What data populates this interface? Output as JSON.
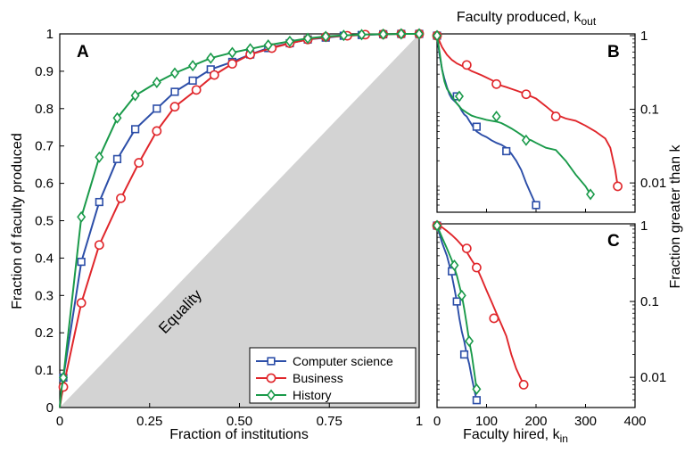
{
  "colors": {
    "Computer science": "#2c4ea8",
    "Business": "#e0262b",
    "History": "#1a9a4a",
    "equality_fill": "#d3d3d3"
  },
  "chart_data": [
    {
      "panel": "A",
      "type": "line",
      "xlabel": "Fraction of institutions",
      "ylabel": "Fraction of faculty produced",
      "xlim": [
        0,
        1
      ],
      "ylim": [
        0,
        1
      ],
      "xticks": [
        "0",
        "0.25",
        "0.50",
        "0.75",
        "1"
      ],
      "yticks": [
        "0",
        "0.1",
        "0.2",
        "0.3",
        "0.4",
        "0.5",
        "0.6",
        "0.7",
        "0.8",
        "0.9",
        "1"
      ],
      "annotation": "Equality",
      "legend_position": "bottom-right",
      "series": [
        {
          "name": "Computer science",
          "x": [
            0,
            0.005,
            0.01,
            0.06,
            0.11,
            0.16,
            0.21,
            0.27,
            0.32,
            0.37,
            0.42,
            0.48,
            0.53,
            0.58,
            0.64,
            0.69,
            0.74,
            0.79,
            0.84,
            0.9,
            0.95,
            1.0
          ],
          "y": [
            0,
            0.04,
            0.08,
            0.39,
            0.55,
            0.665,
            0.745,
            0.8,
            0.845,
            0.875,
            0.905,
            0.925,
            0.945,
            0.962,
            0.975,
            0.985,
            0.99,
            0.995,
            0.997,
            0.999,
            1.0,
            1.0
          ]
        },
        {
          "name": "Business",
          "x": [
            0,
            0.005,
            0.01,
            0.06,
            0.11,
            0.17,
            0.22,
            0.27,
            0.32,
            0.38,
            0.43,
            0.48,
            0.53,
            0.59,
            0.64,
            0.69,
            0.74,
            0.8,
            0.85,
            0.9,
            0.95,
            1.0
          ],
          "y": [
            0,
            0.03,
            0.055,
            0.28,
            0.435,
            0.56,
            0.655,
            0.74,
            0.805,
            0.85,
            0.89,
            0.92,
            0.945,
            0.962,
            0.975,
            0.985,
            0.992,
            0.995,
            0.998,
            0.999,
            1.0,
            1.0
          ]
        },
        {
          "name": "History",
          "x": [
            0,
            0.005,
            0.01,
            0.06,
            0.11,
            0.16,
            0.21,
            0.27,
            0.32,
            0.37,
            0.42,
            0.48,
            0.53,
            0.58,
            0.64,
            0.69,
            0.74,
            0.79,
            0.84,
            0.9,
            0.95,
            1.0
          ],
          "y": [
            0,
            0.05,
            0.08,
            0.51,
            0.67,
            0.775,
            0.835,
            0.87,
            0.895,
            0.915,
            0.935,
            0.95,
            0.96,
            0.97,
            0.98,
            0.988,
            0.993,
            0.996,
            0.998,
            0.999,
            1.0,
            1.0
          ]
        }
      ]
    },
    {
      "panel": "B",
      "type": "line",
      "xlabel_top": "Faculty produced, k",
      "xlabel_top_sub": "out",
      "ylabel_right": "Fraction greater than k",
      "xlim": [
        0,
        400
      ],
      "y_scale": "log",
      "ylim": [
        0.004,
        1
      ],
      "yticks": [
        "1",
        "0.1",
        "0.01"
      ],
      "series": [
        {
          "name": "Computer science",
          "x": [
            0,
            5,
            10,
            15,
            20,
            25,
            30,
            35,
            40,
            45,
            50,
            55,
            60,
            65,
            70,
            75,
            80,
            90,
            100,
            110,
            120,
            130,
            140,
            150,
            160,
            170,
            180,
            190,
            200
          ],
          "y": [
            1,
            0.55,
            0.35,
            0.26,
            0.2,
            0.16,
            0.14,
            0.13,
            0.12,
            0.11,
            0.095,
            0.085,
            0.08,
            0.07,
            0.062,
            0.055,
            0.05,
            0.045,
            0.042,
            0.038,
            0.035,
            0.033,
            0.03,
            0.025,
            0.02,
            0.015,
            0.01,
            0.007,
            0.005
          ],
          "markers_x": [
            0,
            40,
            80,
            140,
            200
          ],
          "markers_y": [
            1,
            0.15,
            0.058,
            0.027,
            0.005
          ]
        },
        {
          "name": "Business",
          "x": [
            0,
            10,
            20,
            30,
            40,
            50,
            60,
            70,
            80,
            90,
            100,
            110,
            120,
            130,
            140,
            150,
            160,
            170,
            180,
            200,
            220,
            240,
            260,
            280,
            300,
            320,
            340,
            350,
            360,
            365
          ],
          "y": [
            1,
            0.7,
            0.55,
            0.47,
            0.42,
            0.39,
            0.36,
            0.33,
            0.31,
            0.29,
            0.27,
            0.25,
            0.23,
            0.21,
            0.2,
            0.19,
            0.18,
            0.17,
            0.16,
            0.14,
            0.11,
            0.085,
            0.075,
            0.07,
            0.06,
            0.05,
            0.04,
            0.03,
            0.015,
            0.009
          ],
          "markers_x": [
            0,
            60,
            120,
            180,
            240,
            365
          ],
          "markers_y": [
            1,
            0.4,
            0.22,
            0.16,
            0.08,
            0.009
          ]
        },
        {
          "name": "History",
          "x": [
            0,
            5,
            10,
            15,
            20,
            25,
            30,
            40,
            50,
            60,
            70,
            80,
            90,
            100,
            110,
            120,
            130,
            140,
            150,
            160,
            170,
            180,
            190,
            200,
            220,
            240,
            260,
            280,
            300,
            310
          ],
          "y": [
            1,
            0.6,
            0.35,
            0.24,
            0.19,
            0.17,
            0.15,
            0.12,
            0.1,
            0.09,
            0.082,
            0.078,
            0.075,
            0.072,
            0.07,
            0.068,
            0.065,
            0.06,
            0.055,
            0.05,
            0.045,
            0.04,
            0.038,
            0.035,
            0.03,
            0.028,
            0.02,
            0.013,
            0.009,
            0.007
          ],
          "markers_x": [
            0,
            45,
            120,
            180,
            310
          ],
          "markers_y": [
            1,
            0.15,
            0.08,
            0.038,
            0.007
          ]
        }
      ]
    },
    {
      "panel": "C",
      "type": "line",
      "xlabel": "Faculty hired, k",
      "xlabel_sub": "in",
      "xlim": [
        0,
        400
      ],
      "xticks": [
        "0",
        "100",
        "200",
        "300",
        "400"
      ],
      "y_scale": "log",
      "ylim": [
        0.004,
        1
      ],
      "yticks": [
        "1",
        "0.1",
        "0.01"
      ],
      "series": [
        {
          "name": "Computer science",
          "x": [
            0,
            10,
            20,
            25,
            30,
            35,
            40,
            45,
            50,
            55,
            60,
            65,
            70,
            75,
            80
          ],
          "y": [
            1,
            0.6,
            0.4,
            0.3,
            0.22,
            0.15,
            0.1,
            0.06,
            0.04,
            0.03,
            0.02,
            0.015,
            0.01,
            0.007,
            0.005
          ],
          "markers_x": [
            0,
            30,
            40,
            55,
            80
          ],
          "markers_y": [
            1,
            0.25,
            0.1,
            0.02,
            0.005
          ]
        },
        {
          "name": "Business",
          "x": [
            0,
            10,
            20,
            30,
            40,
            50,
            60,
            70,
            80,
            90,
            100,
            110,
            120,
            130,
            140,
            150,
            160,
            175
          ],
          "y": [
            1,
            0.95,
            0.85,
            0.75,
            0.65,
            0.55,
            0.45,
            0.35,
            0.28,
            0.2,
            0.14,
            0.1,
            0.07,
            0.05,
            0.035,
            0.02,
            0.013,
            0.008
          ],
          "markers_x": [
            0,
            60,
            80,
            115,
            175
          ],
          "markers_y": [
            1,
            0.5,
            0.28,
            0.06,
            0.008
          ]
        },
        {
          "name": "History",
          "x": [
            0,
            10,
            20,
            30,
            40,
            50,
            55,
            60,
            65,
            70,
            75,
            80
          ],
          "y": [
            1,
            0.7,
            0.5,
            0.35,
            0.22,
            0.12,
            0.08,
            0.05,
            0.03,
            0.02,
            0.012,
            0.007
          ],
          "markers_x": [
            0,
            35,
            50,
            65,
            80
          ],
          "markers_y": [
            1,
            0.3,
            0.12,
            0.03,
            0.007
          ]
        }
      ]
    }
  ]
}
